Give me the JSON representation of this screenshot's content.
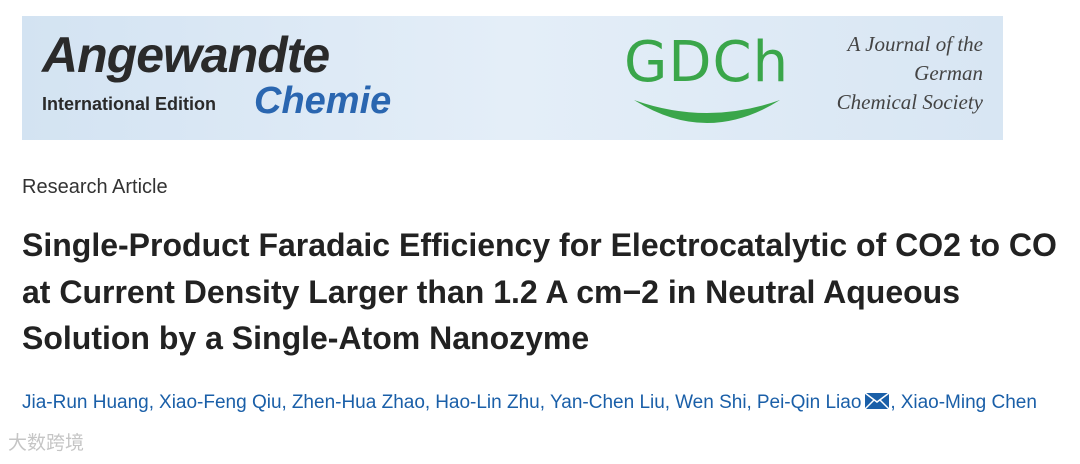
{
  "banner": {
    "journal_name": "Angewandte",
    "edition": "International Edition",
    "journal_subname": "Chemie",
    "society_logo": "GDCh",
    "society_text": [
      "A Journal of the",
      "German",
      "Chemical Society"
    ]
  },
  "article_type": "Research Article",
  "title": "Single-Product Faradaic Efficiency for Electrocatalytic of CO2 to CO at Current Density Larger than 1.2 A cm−2 in Neutral Aqueous Solution by a Single-Atom Nanozyme",
  "authors": [
    "Jia-Run Huang,",
    "Xiao-Feng Qiu,",
    "Zhen-Hua Zhao,",
    "Hao-Lin Zhu,",
    "Yan-Chen Liu,",
    "Wen Shi,",
    "Pei-Qin Liao",
    ",",
    "Xiao-Ming Chen"
  ],
  "watermark": "大数跨境"
}
